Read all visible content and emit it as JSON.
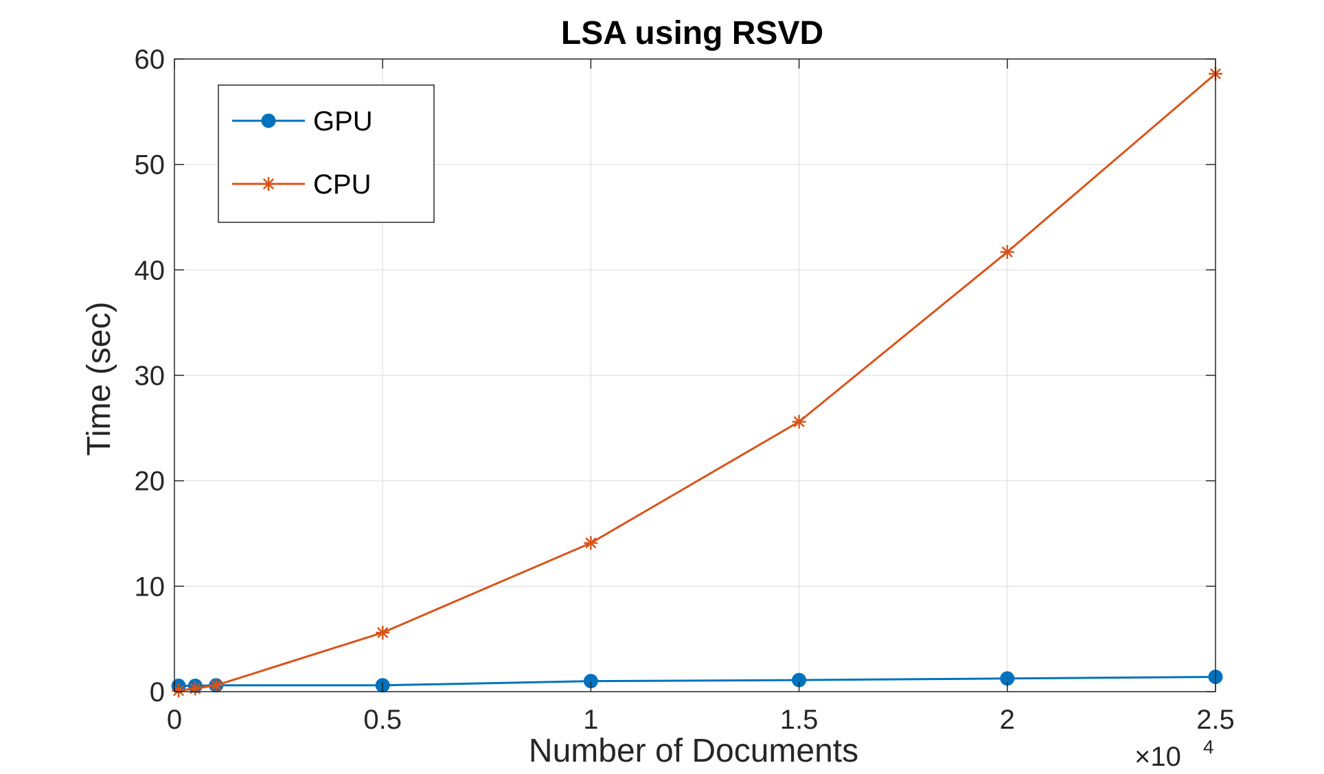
{
  "chart_data": {
    "type": "line",
    "title": "LSA using RSVD",
    "xlabel": "Number of Documents",
    "ylabel": "Time (sec)",
    "x_exponent_label": "×10",
    "x_exponent_power": "4",
    "xlim": [
      0,
      2.5
    ],
    "ylim": [
      0,
      60
    ],
    "x_ticks": [
      0,
      0.5,
      1,
      1.5,
      2,
      2.5
    ],
    "x_tick_labels": [
      "0",
      "0.5",
      "1",
      "1.5",
      "2",
      "2.5"
    ],
    "y_ticks": [
      0,
      10,
      20,
      30,
      40,
      50,
      60
    ],
    "y_tick_labels": [
      "0",
      "10",
      "20",
      "30",
      "40",
      "50",
      "60"
    ],
    "grid": true,
    "legend_position": "top-left",
    "series": [
      {
        "name": "GPU",
        "color": "#0072BD",
        "marker": "circle",
        "x": [
          0.01,
          0.05,
          0.1,
          0.5,
          1,
          1.5,
          2,
          2.5
        ],
        "y": [
          0.55,
          0.55,
          0.6,
          0.6,
          1.0,
          1.1,
          1.25,
          1.4
        ]
      },
      {
        "name": "CPU",
        "color": "#D95319",
        "marker": "asterisk",
        "x": [
          0.01,
          0.05,
          0.1,
          0.5,
          1,
          1.5,
          2,
          2.5
        ],
        "y": [
          0.1,
          0.3,
          0.6,
          5.6,
          14.1,
          25.6,
          41.7,
          58.6
        ]
      }
    ]
  }
}
